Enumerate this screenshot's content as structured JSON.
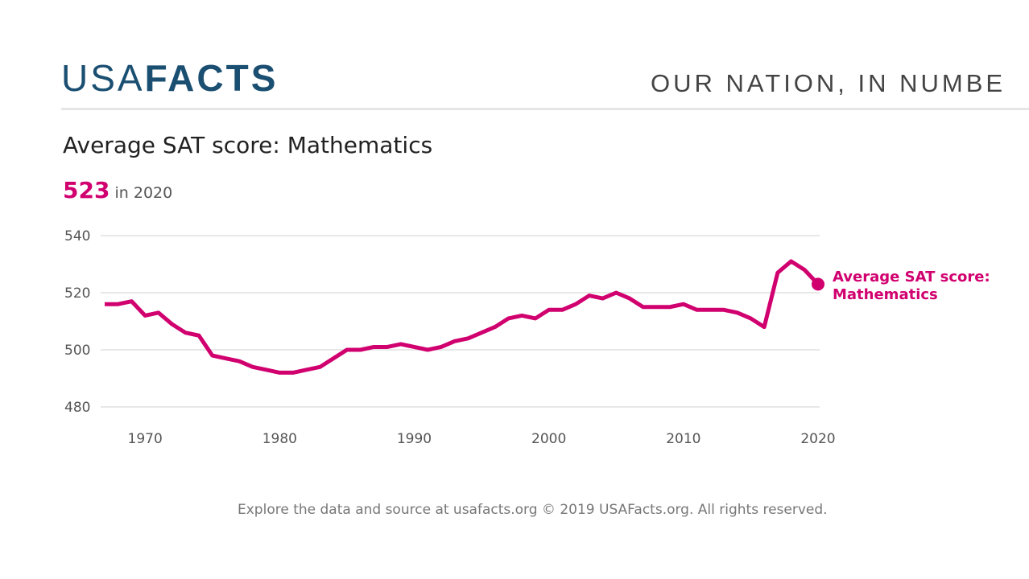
{
  "header": {
    "logo_light": "USA",
    "logo_bold": "FACTS",
    "tagline": "OUR NATION, IN NUMBE"
  },
  "title": "Average SAT score: Mathematics",
  "headline": {
    "value": "523",
    "suffix": "in 2020"
  },
  "footer": "Explore the data and source at usafacts.org © 2019 USAFacts.org. All rights reserved.",
  "colors": {
    "series": "#d1006f",
    "logo": "#1b4f72"
  },
  "chart_data": {
    "type": "line",
    "title": "Average SAT score: Mathematics",
    "xlabel": "",
    "ylabel": "",
    "ylim": [
      480,
      540
    ],
    "xlim": [
      1967,
      2020
    ],
    "yticks": [
      "480",
      "500",
      "520",
      "540"
    ],
    "xticks": [
      "1970",
      "1980",
      "1990",
      "2000",
      "2010",
      "2020"
    ],
    "grid": true,
    "series": [
      {
        "name": "Average SAT score: Mathematics",
        "label_lines": [
          "Average SAT score:",
          "Mathematics"
        ],
        "x": [
          1967,
          1968,
          1969,
          1970,
          1971,
          1972,
          1973,
          1974,
          1975,
          1976,
          1977,
          1978,
          1979,
          1980,
          1981,
          1982,
          1983,
          1984,
          1985,
          1986,
          1987,
          1988,
          1989,
          1990,
          1991,
          1992,
          1993,
          1994,
          1995,
          1996,
          1997,
          1998,
          1999,
          2000,
          2001,
          2002,
          2003,
          2004,
          2005,
          2006,
          2007,
          2008,
          2009,
          2010,
          2011,
          2012,
          2013,
          2014,
          2015,
          2016,
          2017,
          2018,
          2019,
          2020
        ],
        "values": [
          516,
          516,
          517,
          512,
          513,
          509,
          506,
          505,
          498,
          497,
          496,
          494,
          493,
          492,
          492,
          493,
          494,
          497,
          500,
          500,
          501,
          501,
          502,
          501,
          500,
          501,
          503,
          504,
          506,
          508,
          511,
          512,
          511,
          514,
          514,
          516,
          519,
          518,
          520,
          518,
          515,
          515,
          515,
          516,
          514,
          514,
          514,
          513,
          511,
          508,
          527,
          531,
          528,
          523
        ]
      }
    ]
  }
}
